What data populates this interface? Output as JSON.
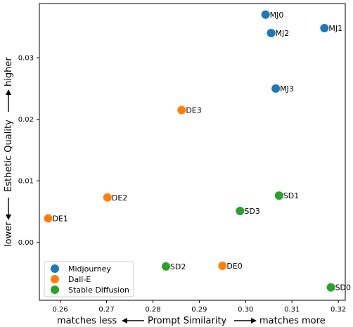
{
  "chart_data": {
    "type": "scatter",
    "xlim": [
      0.2555,
      0.3215
    ],
    "ylim": [
      -0.0094,
      0.0388
    ],
    "x_ticks": [
      {
        "value": 0.26,
        "label": "0.26"
      },
      {
        "value": 0.27,
        "label": "0.27"
      },
      {
        "value": 0.28,
        "label": "0.28"
      },
      {
        "value": 0.29,
        "label": "0.29"
      },
      {
        "value": 0.3,
        "label": "0.30"
      },
      {
        "value": 0.31,
        "label": "0.31"
      },
      {
        "value": 0.32,
        "label": "0.32"
      }
    ],
    "y_ticks": [
      {
        "value": 0.0,
        "label": "0.00"
      },
      {
        "value": 0.01,
        "label": "0.01"
      },
      {
        "value": 0.02,
        "label": "0.02"
      },
      {
        "value": 0.03,
        "label": "0.03"
      }
    ],
    "x_axis": {
      "left_word": "matches less",
      "center_word": "Prompt Similarity",
      "right_word": "matches more"
    },
    "y_axis": {
      "low_word": "lower",
      "center_word": "Esthetic Quality",
      "high_word": "higher"
    },
    "grid": false,
    "legend_position": "lower-left",
    "series": [
      {
        "name": "Midjourney",
        "color": "#1f77b4",
        "points": [
          {
            "label": "MJ0",
            "x": 0.3043,
            "y": 0.037
          },
          {
            "label": "MJ2",
            "x": 0.3055,
            "y": 0.034
          },
          {
            "label": "MJ1",
            "x": 0.317,
            "y": 0.0348
          },
          {
            "label": "MJ3",
            "x": 0.3065,
            "y": 0.025
          }
        ]
      },
      {
        "name": "Dall-E",
        "color": "#ff7f0e",
        "points": [
          {
            "label": "DE3",
            "x": 0.2862,
            "y": 0.0215
          },
          {
            "label": "DE2",
            "x": 0.2702,
            "y": 0.0073
          },
          {
            "label": "DE1",
            "x": 0.2574,
            "y": 0.0039
          },
          {
            "label": "DE0",
            "x": 0.295,
            "y": -0.0038
          }
        ]
      },
      {
        "name": "Stable Diffusion",
        "color": "#2ca02c",
        "points": [
          {
            "label": "SD1",
            "x": 0.3072,
            "y": 0.0076
          },
          {
            "label": "SD3",
            "x": 0.2988,
            "y": 0.0051
          },
          {
            "label": "SD2",
            "x": 0.2828,
            "y": -0.0039
          },
          {
            "label": "SD0",
            "x": 0.3184,
            "y": -0.0073
          }
        ]
      }
    ]
  }
}
